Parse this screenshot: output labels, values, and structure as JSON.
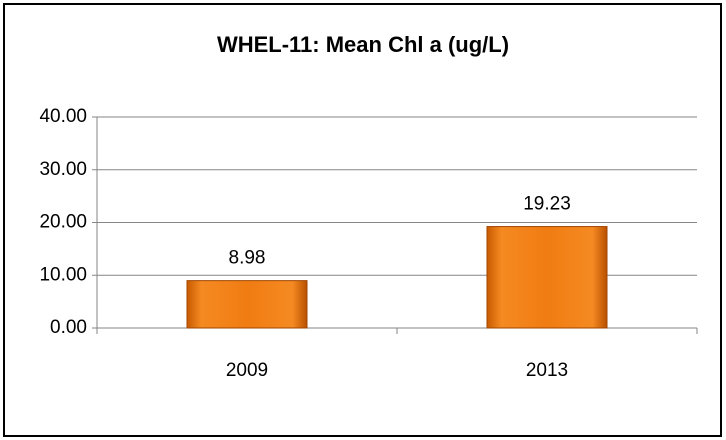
{
  "chart_data": {
    "type": "bar",
    "title": "WHEL-11: Mean Chl a (ug/L)",
    "categories": [
      "2009",
      "2013"
    ],
    "values": [
      8.98,
      19.23
    ],
    "color": "#f07c12",
    "ylim": [
      0,
      40
    ],
    "yticks": [
      {
        "value": 0,
        "label": "0.00"
      },
      {
        "value": 10,
        "label": "10.00"
      },
      {
        "value": 20,
        "label": "20.00"
      },
      {
        "value": 30,
        "label": "30.00"
      },
      {
        "value": 40,
        "label": "40.00"
      }
    ],
    "grid": true
  }
}
